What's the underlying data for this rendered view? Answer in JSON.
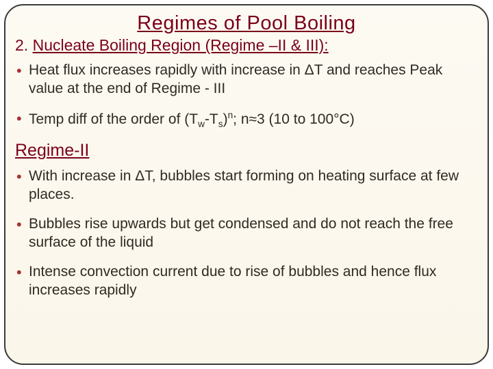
{
  "colors": {
    "title_color": "#7a0019",
    "subtitle_color": "#7a0019",
    "bullet_color": "#a83232",
    "body_text_color": "#2f2a22",
    "section_head_color": "#7a0019",
    "frame_border": "#3a3a3a",
    "bg_top": "#fdfaf3",
    "bg_bottom": "#fbf6ea"
  },
  "title": "Regimes of Pool Boiling",
  "subtitle_num": "2. ",
  "subtitle_text": "Nucleate Boiling Region (Regime –II & III):",
  "top_bullets": [
    "Heat flux increases rapidly with increase in ΔT and reaches Peak value at the end of Regime - III"
  ],
  "temp_bullet": {
    "pre": "Temp diff of the order of (T",
    "sub1": "w",
    "mid1": "-T",
    "sub2": "s",
    "mid2": ")",
    "sup": "n",
    "post": "; n≈3 (10 to 100°C)"
  },
  "section_head": "Regime-II",
  "section_bullets": [
    "With increase in ΔT, bubbles start forming on heating surface at few places.",
    "Bubbles rise upwards but get condensed and do not reach the free surface of the liquid",
    "Intense convection current due to rise of bubbles and hence flux increases rapidly"
  ]
}
